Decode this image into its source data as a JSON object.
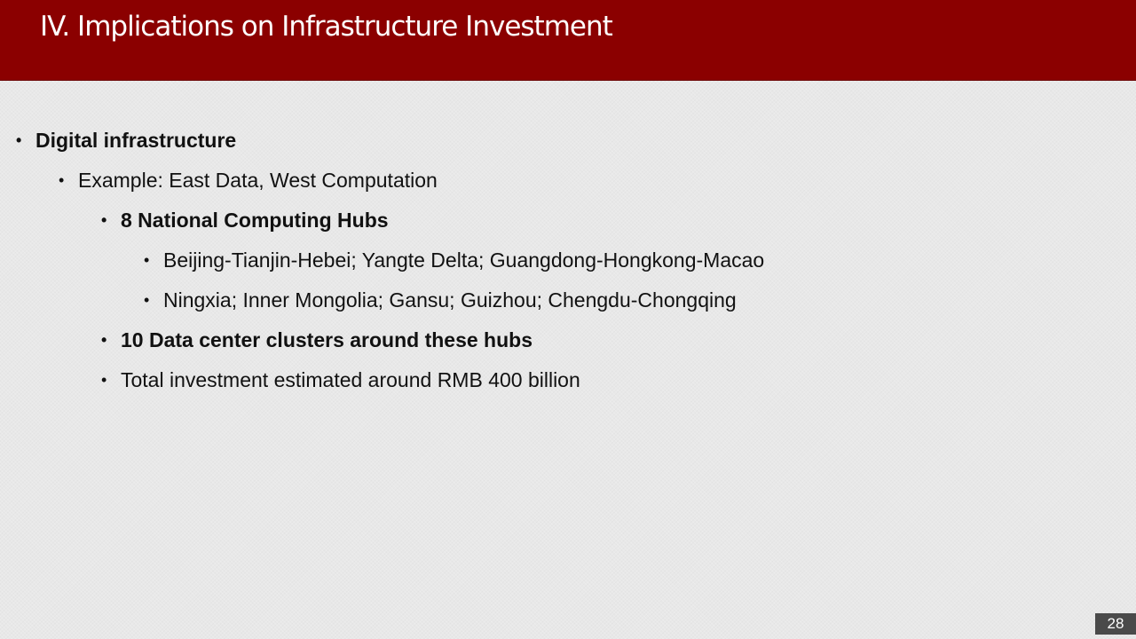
{
  "slide": {
    "title": "IV. Implications on Infrastructure Investment",
    "page_number": "28",
    "colors": {
      "title_bar": "#8b0000",
      "background": "#e8e8e8",
      "page_badge": "#4a4a4a"
    }
  },
  "bullets": [
    {
      "level": 1,
      "bold": true,
      "text": "Digital infrastructure"
    },
    {
      "level": 2,
      "bold": false,
      "text": "Example: East Data, West Computation"
    },
    {
      "level": 3,
      "bold": true,
      "text": "8 National Computing Hubs"
    },
    {
      "level": 4,
      "bold": false,
      "text": "Beijing-Tianjin-Hebei; Yangte Delta; Guangdong-Hongkong-Macao"
    },
    {
      "level": 4,
      "bold": false,
      "text": "Ningxia; Inner Mongolia; Gansu; Guizhou; Chengdu-Chongqing"
    },
    {
      "level": 3,
      "bold": true,
      "text": "10 Data center clusters around these hubs"
    },
    {
      "level": 3,
      "bold": false,
      "text": "Total investment estimated around RMB 400 billion"
    }
  ]
}
